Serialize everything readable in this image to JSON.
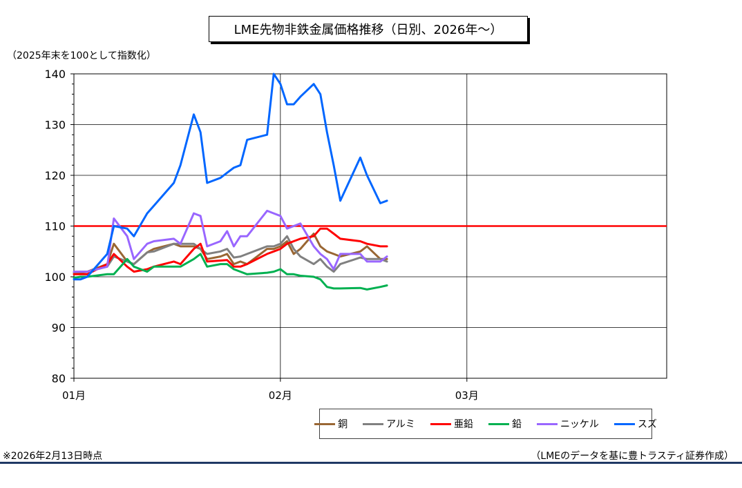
{
  "chart_data": {
    "type": "line",
    "title": "LME先物非鉄金属価格推移（日別、2026年～）",
    "ylabel": "（2025年末を100として指数化）",
    "ylim": [
      80,
      140
    ],
    "yticks": [
      80,
      90,
      100,
      110,
      120,
      130,
      140
    ],
    "x_tick_labels": [
      "01月",
      "02月",
      "03月"
    ],
    "x_tick_positions": [
      0,
      31,
      59
    ],
    "xlim": [
      0,
      89
    ],
    "grid": true,
    "legend_position": "bottom",
    "reference_line": {
      "y": 110,
      "color": "#ff0000"
    },
    "x": [
      0,
      1,
      2,
      5,
      6,
      8,
      9,
      11,
      12,
      15,
      16,
      18,
      19,
      20,
      22,
      23,
      24,
      25,
      26,
      29,
      30,
      31,
      32,
      33,
      34,
      36,
      37,
      38,
      39,
      40,
      43,
      44,
      46,
      47
    ],
    "series": [
      {
        "name": "銅",
        "color": "#996633",
        "values": [
          100.5,
          100.8,
          101.0,
          102.5,
          106.5,
          103.0,
          102.5,
          104.8,
          105.5,
          106.5,
          106.0,
          106.0,
          105.5,
          103.5,
          104.0,
          104.5,
          102.5,
          103.0,
          102.5,
          105.5,
          105.5,
          106.0,
          107.0,
          104.5,
          105.5,
          108.5,
          106.0,
          105.0,
          104.5,
          104.0,
          105.0,
          106.0,
          103.5,
          103.5
        ]
      },
      {
        "name": "アルミ",
        "color": "#808080",
        "values": [
          100.8,
          101.0,
          101.0,
          102.0,
          104.0,
          103.0,
          102.5,
          104.8,
          105.0,
          106.5,
          106.5,
          106.5,
          105.5,
          104.5,
          105.0,
          105.5,
          103.8,
          104.0,
          104.5,
          106.0,
          106.0,
          106.5,
          108.0,
          105.5,
          104.0,
          102.5,
          103.5,
          102.0,
          101.0,
          102.5,
          103.8,
          103.5,
          103.5,
          103.0
        ]
      },
      {
        "name": "亜鉛",
        "color": "#ff0000",
        "values": [
          100.5,
          100.5,
          100.5,
          102.5,
          104.5,
          102.0,
          101.0,
          101.5,
          102.0,
          103.0,
          102.5,
          105.5,
          106.5,
          103.0,
          103.2,
          103.3,
          102.0,
          102.0,
          102.5,
          104.5,
          105.0,
          105.5,
          106.5,
          107.0,
          107.5,
          108.0,
          109.5,
          109.5,
          108.5,
          107.5,
          107.0,
          106.5,
          106.0,
          106.0
        ]
      },
      {
        "name": "鉛",
        "color": "#00b050",
        "values": [
          99.8,
          100.0,
          100.0,
          100.5,
          100.5,
          103.5,
          102.0,
          101.0,
          102.0,
          102.0,
          102.0,
          103.5,
          104.5,
          102.0,
          102.5,
          102.5,
          101.5,
          101.0,
          100.5,
          100.8,
          101.0,
          101.5,
          100.5,
          100.5,
          100.2,
          100.0,
          99.5,
          98.0,
          97.7,
          97.7,
          97.8,
          97.5,
          98.0,
          98.3
        ]
      },
      {
        "name": "ニッケル",
        "color": "#9966ff",
        "values": [
          101.0,
          101.0,
          101.0,
          102.0,
          111.5,
          108.0,
          103.5,
          106.5,
          107.0,
          107.5,
          106.5,
          112.5,
          112.0,
          106.0,
          107.0,
          109.0,
          106.0,
          108.0,
          108.0,
          113.0,
          112.5,
          112.0,
          109.5,
          110.0,
          110.5,
          106.0,
          104.5,
          103.5,
          101.5,
          104.5,
          104.5,
          103.0,
          103.0,
          104.0
        ]
      },
      {
        "name": "スズ",
        "color": "#0066ff",
        "values": [
          99.5,
          99.5,
          100.0,
          104.5,
          110.0,
          109.5,
          108.0,
          112.5,
          114.0,
          118.5,
          122.0,
          132.0,
          128.5,
          118.5,
          119.5,
          120.5,
          121.5,
          122.0,
          127.0,
          128.0,
          140.0,
          138.0,
          134.0,
          134.0,
          135.5,
          138.0,
          136.0,
          128.5,
          122.0,
          115.0,
          123.5,
          120.0,
          114.5,
          115.0
        ]
      }
    ]
  },
  "header": {
    "title": "LME先物非鉄金属価格推移（日別、2026年～）",
    "index_note": "（2025年末を100として指数化）"
  },
  "footer": {
    "note": "※2026年2月13日時点",
    "source": "（LMEのデータを基に豊トラスティ証券作成）"
  }
}
